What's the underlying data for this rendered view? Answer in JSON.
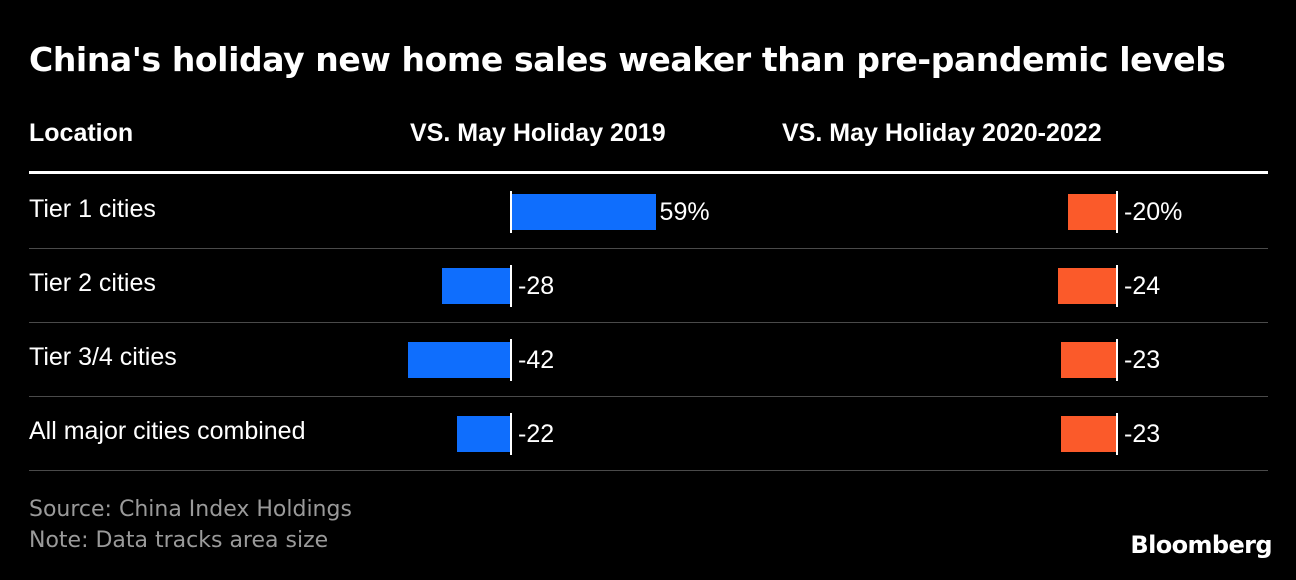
{
  "title": "China's holiday new home sales weaker than pre-pandemic levels",
  "columns": {
    "location": "Location",
    "vs_2019": "VS. May Holiday 2019",
    "vs_2020_2022": "VS. May Holiday 2020-2022"
  },
  "colors": {
    "series_2019": "#0f6efd",
    "series_2020_2022": "#fb5a2a",
    "background": "#000000"
  },
  "chart_data": {
    "type": "bar",
    "orientation": "horizontal",
    "categories": [
      "Tier 1 cities",
      "Tier 2 cities",
      "Tier 3/4 cities",
      "All major cities combined"
    ],
    "series": [
      {
        "name": "VS. May Holiday 2019",
        "values": [
          59,
          -28,
          -42,
          -22
        ],
        "labels": [
          "59%",
          "-28",
          "-42",
          "-22"
        ]
      },
      {
        "name": "VS. May Holiday 2020-2022",
        "values": [
          -20,
          -24,
          -23,
          -23
        ],
        "labels": [
          "-20%",
          "-24",
          "-23",
          "-23"
        ]
      }
    ],
    "unit": "%"
  },
  "footer": {
    "source": "Source: China Index Holdings",
    "note": "Note: Data tracks area size",
    "brand": "Bloomberg"
  }
}
